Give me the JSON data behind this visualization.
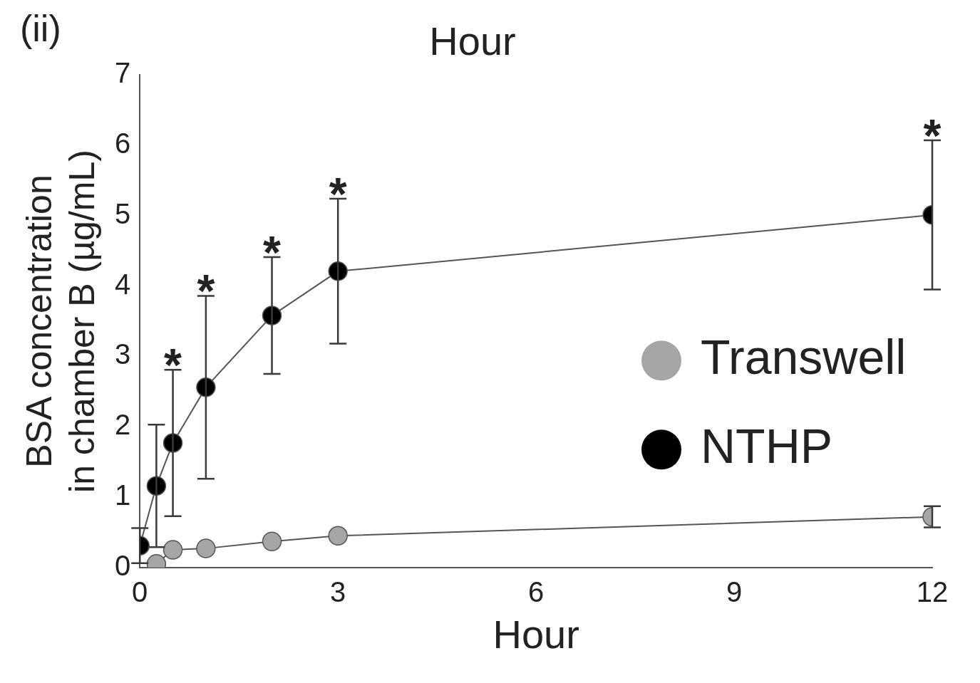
{
  "chart_data": {
    "type": "line",
    "title": "Hour",
    "xlabel": "Hour",
    "ylabel": "BSA concentration\nin chamber B (µg/mL)",
    "xlim": [
      0,
      12
    ],
    "xticks": [
      0,
      3,
      6,
      9,
      12
    ],
    "ylim": [
      0,
      7
    ],
    "yticks": [
      0,
      1,
      2,
      3,
      4,
      5,
      6,
      7
    ],
    "grid": false,
    "legend": "right",
    "marker": "circle",
    "line_style": "solid",
    "series": [
      {
        "name": "Transwell",
        "color": "#a6a6a6",
        "x": [
          0.25,
          0.5,
          1,
          2,
          3,
          12
        ],
        "values": [
          0.05,
          0.25,
          0.27,
          0.37,
          0.45,
          0.72
        ],
        "errors": [
          null,
          null,
          null,
          null,
          null,
          0.15
        ]
      },
      {
        "name": "NTHP",
        "color": "#000000",
        "x": [
          0,
          0.25,
          0.5,
          1,
          2,
          3,
          12
        ],
        "values": [
          0.31,
          1.16,
          1.77,
          2.56,
          3.58,
          4.21,
          5.01
        ],
        "errors": [
          0.25,
          0.87,
          1.04,
          1.3,
          0.83,
          1.03,
          1.06
        ]
      }
    ],
    "annotations": [
      "(ii)",
      {
        "text": "*",
        "x": 0.5,
        "y": 2.81
      },
      {
        "text": "*",
        "x": 1,
        "y": 3.86
      },
      {
        "text": "*",
        "x": 2,
        "y": 4.41
      },
      {
        "text": "*",
        "x": 3,
        "y": 5.24
      },
      {
        "text": "*",
        "x": 12,
        "y": 6.07
      }
    ]
  }
}
